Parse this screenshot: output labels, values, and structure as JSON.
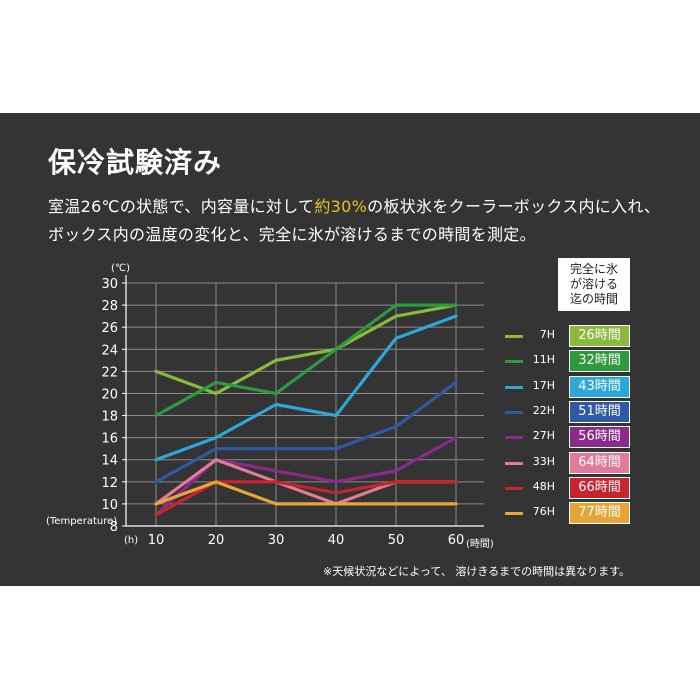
{
  "title": "保冷試験済み",
  "description": {
    "line1_pre": "室温26℃の状態で、内容量に対して",
    "line1_highlight": "約30%",
    "line1_post": "の板状氷をクーラーボックス内に入れ、",
    "line2": "ボックス内の温度の変化と、完全に氷が溶けるまでの時間を測定。"
  },
  "footnote": "※天候状況などによって、 溶けきるまでの時間は異なります。",
  "legend_header": [
    "完全に氷",
    "が溶ける",
    "迄の時間"
  ],
  "colors": {
    "background": "#343434",
    "grid": "#8a8a8a",
    "highlight": "#e8c31a"
  },
  "chart_data": {
    "type": "line",
    "x": [
      10,
      20,
      30,
      40,
      50,
      60
    ],
    "xlim": [
      10,
      60
    ],
    "ylim": [
      8,
      30
    ],
    "xticks": [
      "10",
      "20",
      "30",
      "40",
      "50",
      "60"
    ],
    "yticks": [
      "8",
      "10",
      "12",
      "14",
      "16",
      "18",
      "20",
      "22",
      "24",
      "26",
      "28",
      "30"
    ],
    "y_unit": "(℃)",
    "y_caption": "(Temperature)",
    "x_unit": "(h)",
    "x_caption": "(時間)",
    "grid": true,
    "legend_position": "right",
    "series": [
      {
        "name": "7H",
        "badge": "26時間",
        "color": "#8bb93c",
        "values": [
          22,
          20,
          23,
          24,
          27,
          28
        ]
      },
      {
        "name": "11H",
        "badge": "32時間",
        "color": "#2e9a3e",
        "values": [
          18,
          21,
          20,
          24,
          28,
          28
        ]
      },
      {
        "name": "17H",
        "badge": "43時間",
        "color": "#2ba8d9",
        "values": [
          14,
          16,
          19,
          18,
          25,
          27
        ]
      },
      {
        "name": "22H",
        "badge": "51時間",
        "color": "#2f58a5",
        "values": [
          12,
          15,
          15,
          15,
          17,
          21
        ]
      },
      {
        "name": "27H",
        "badge": "56時間",
        "color": "#8c2a8c",
        "values": [
          9,
          14,
          13,
          12,
          13,
          16
        ]
      },
      {
        "name": "33H",
        "badge": "64時間",
        "color": "#e27b97",
        "values": [
          10,
          14,
          12,
          10,
          12,
          12
        ]
      },
      {
        "name": "48H",
        "badge": "66時間",
        "color": "#c8242f",
        "values": [
          9,
          12,
          12,
          11,
          12,
          12
        ]
      },
      {
        "name": "76H",
        "badge": "77時間",
        "color": "#e6a534",
        "values": [
          10,
          12,
          10,
          10,
          10,
          10
        ]
      }
    ]
  }
}
